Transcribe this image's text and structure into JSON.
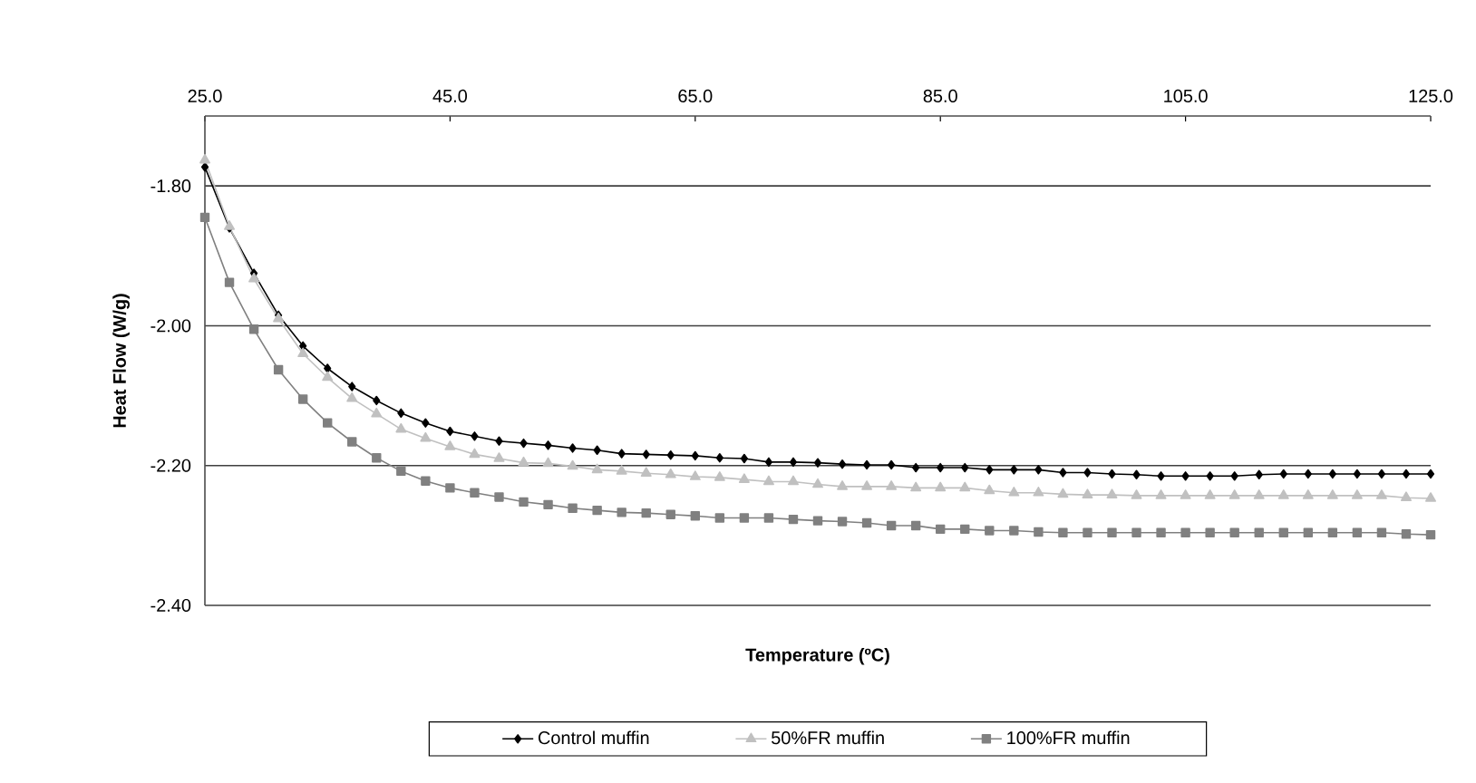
{
  "chart_data": {
    "type": "line",
    "xlabel": "Temperature (ºC)",
    "ylabel": "Heat Flow (W/g)",
    "x": [
      25,
      27,
      29,
      31,
      33,
      35,
      37,
      39,
      41,
      43,
      45,
      47,
      49,
      51,
      53,
      55,
      57,
      59,
      61,
      63,
      65,
      67,
      69,
      71,
      73,
      75,
      77,
      79,
      81,
      83,
      85,
      87,
      89,
      91,
      93,
      95,
      97,
      99,
      101,
      103,
      105,
      107,
      109,
      111,
      113,
      115,
      117,
      119,
      121,
      123,
      125
    ],
    "series": [
      {
        "name": "Control muffin",
        "color": "#000000",
        "marker": "diamond",
        "values": [
          -1.773,
          -1.86,
          -1.925,
          -1.985,
          -2.029,
          -2.061,
          -2.087,
          -2.107,
          -2.125,
          -2.139,
          -2.151,
          -2.158,
          -2.165,
          -2.168,
          -2.171,
          -2.175,
          -2.178,
          -2.183,
          -2.184,
          -2.185,
          -2.186,
          -2.189,
          -2.19,
          -2.195,
          -2.195,
          -2.196,
          -2.198,
          -2.199,
          -2.199,
          -2.203,
          -2.203,
          -2.203,
          -2.206,
          -2.206,
          -2.206,
          -2.21,
          -2.21,
          -2.212,
          -2.213,
          -2.215,
          -2.215,
          -2.215,
          -2.215,
          -2.213,
          -2.212,
          -2.212,
          -2.212,
          -2.212,
          -2.212,
          -2.212,
          -2.212
        ]
      },
      {
        "name": "50%FR muffin",
        "color": "#c0c0c0",
        "marker": "triangle",
        "values": [
          -1.763,
          -1.858,
          -1.933,
          -1.99,
          -2.04,
          -2.074,
          -2.104,
          -2.126,
          -2.148,
          -2.161,
          -2.173,
          -2.184,
          -2.19,
          -2.196,
          -2.197,
          -2.201,
          -2.206,
          -2.208,
          -2.211,
          -2.213,
          -2.216,
          -2.217,
          -2.22,
          -2.223,
          -2.223,
          -2.227,
          -2.23,
          -2.23,
          -2.23,
          -2.232,
          -2.232,
          -2.232,
          -2.236,
          -2.239,
          -2.239,
          -2.241,
          -2.242,
          -2.242,
          -2.243,
          -2.243,
          -2.243,
          -2.243,
          -2.243,
          -2.243,
          -2.243,
          -2.243,
          -2.243,
          -2.243,
          -2.243,
          -2.246,
          -2.247
        ]
      },
      {
        "name": "100%FR muffin",
        "color": "#808080",
        "marker": "square",
        "values": [
          -1.845,
          -1.938,
          -2.005,
          -2.063,
          -2.105,
          -2.139,
          -2.166,
          -2.189,
          -2.208,
          -2.222,
          -2.232,
          -2.239,
          -2.245,
          -2.252,
          -2.256,
          -2.261,
          -2.264,
          -2.267,
          -2.268,
          -2.27,
          -2.272,
          -2.275,
          -2.275,
          -2.275,
          -2.277,
          -2.279,
          -2.28,
          -2.282,
          -2.286,
          -2.286,
          -2.291,
          -2.291,
          -2.293,
          -2.293,
          -2.295,
          -2.296,
          -2.296,
          -2.296,
          -2.296,
          -2.296,
          -2.296,
          -2.296,
          -2.296,
          -2.296,
          -2.296,
          -2.296,
          -2.296,
          -2.296,
          -2.296,
          -2.298,
          -2.299
        ]
      }
    ],
    "xlim": [
      25,
      125
    ],
    "xticks": [
      {
        "value": 25,
        "label": "25.0"
      },
      {
        "value": 45,
        "label": "45.0"
      },
      {
        "value": 65,
        "label": "65.0"
      },
      {
        "value": 85,
        "label": "85.0"
      },
      {
        "value": 105,
        "label": "105.0"
      },
      {
        "value": 125,
        "label": "125.0"
      }
    ],
    "ylim": [
      -2.4,
      -1.7
    ],
    "yticks": [
      {
        "value": -2.4,
        "label": "-2.40"
      },
      {
        "value": -2.2,
        "label": "-2.20"
      },
      {
        "value": -2.0,
        "label": "-2.00"
      },
      {
        "value": -1.8,
        "label": "-1.80"
      }
    ],
    "grid": "y",
    "legend": "bottom",
    "line_style": "solid"
  }
}
